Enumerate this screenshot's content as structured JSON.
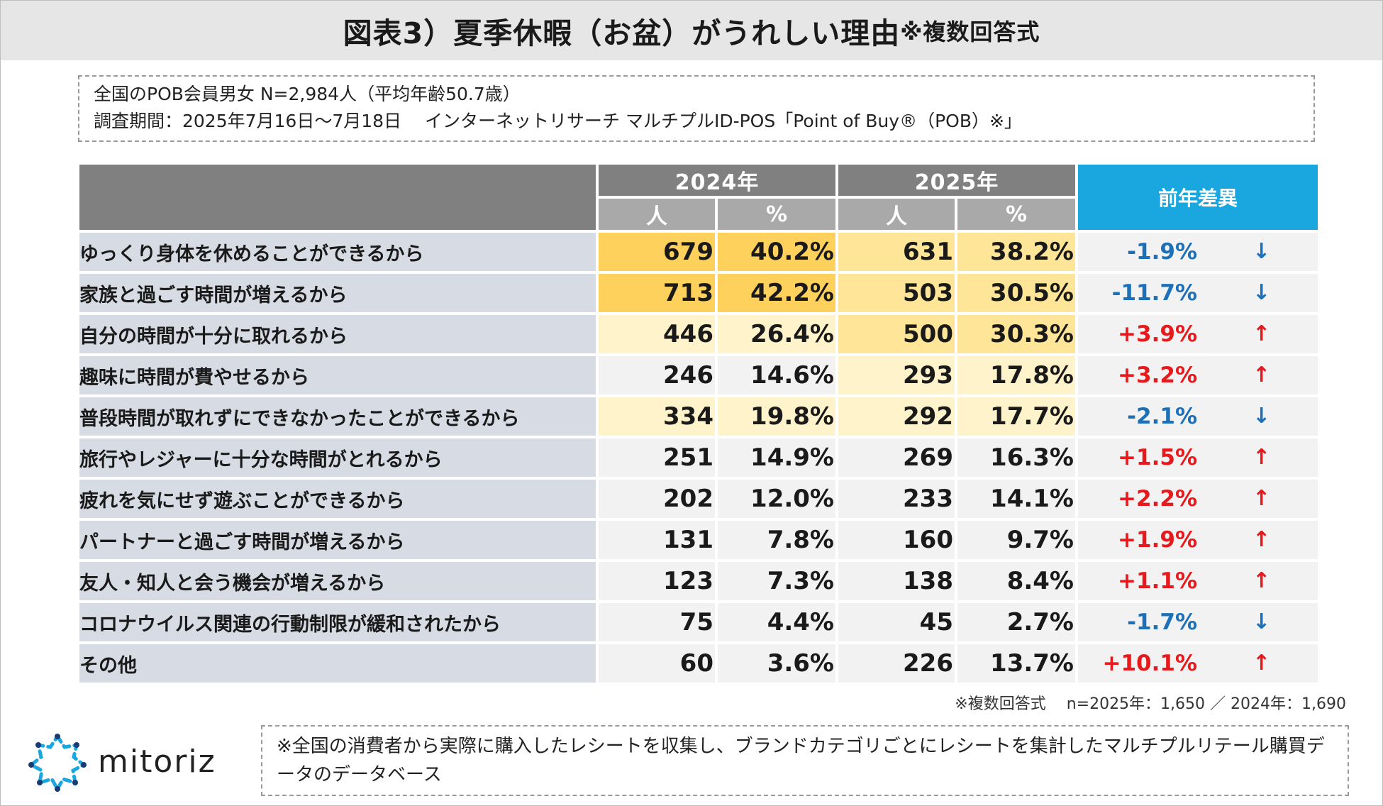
{
  "title": {
    "main": "図表3）夏季休暇（お盆）がうれしい理由",
    "sub": "※複数回答式"
  },
  "info": {
    "line1": "全国のPOB会員男女 N=2,984人（平均年齢50.7歳）",
    "line2": "調査期間：2025年7月16日～7月18日　 インターネットリサーチ マルチプルID-POS「Point of Buy®（POB）※」"
  },
  "table": {
    "year1": "2024年",
    "year2": "2025年",
    "unit_person": "人",
    "unit_pct": "%",
    "diff_header": "前年差異"
  },
  "chart_data": {
    "type": "table",
    "title": "図表3）夏季休暇（お盆）がうれしい理由",
    "columns": [
      "2024年 人",
      "2024年 %",
      "2025年 人",
      "2025年 %",
      "前年差異"
    ],
    "rows": [
      {
        "label": "ゆっくり身体を休めることができるから",
        "n2024": "679",
        "p2024": "40.2%",
        "n2025": "631",
        "p2025": "38.2%",
        "diff": "-1.9%",
        "dir": "down"
      },
      {
        "label": "家族と過ごす時間が増えるから",
        "n2024": "713",
        "p2024": "42.2%",
        "n2025": "503",
        "p2025": "30.5%",
        "diff": "-11.7%",
        "dir": "down"
      },
      {
        "label": "自分の時間が十分に取れるから",
        "n2024": "446",
        "p2024": "26.4%",
        "n2025": "500",
        "p2025": "30.3%",
        "diff": "+3.9%",
        "dir": "up"
      },
      {
        "label": "趣味に時間が費やせるから",
        "n2024": "246",
        "p2024": "14.6%",
        "n2025": "293",
        "p2025": "17.8%",
        "diff": "+3.2%",
        "dir": "up"
      },
      {
        "label": "普段時間が取れずにできなかったことができるから",
        "n2024": "334",
        "p2024": "19.8%",
        "n2025": "292",
        "p2025": "17.7%",
        "diff": "-2.1%",
        "dir": "down"
      },
      {
        "label": "旅行やレジャーに十分な時間がとれるから",
        "n2024": "251",
        "p2024": "14.9%",
        "n2025": "269",
        "p2025": "16.3%",
        "diff": "+1.5%",
        "dir": "up"
      },
      {
        "label": "疲れを気にせず遊ぶことができるから",
        "n2024": "202",
        "p2024": "12.0%",
        "n2025": "233",
        "p2025": "14.1%",
        "diff": "+2.2%",
        "dir": "up"
      },
      {
        "label": "パートナーと過ごす時間が増えるから",
        "n2024": "131",
        "p2024": "7.8%",
        "n2025": "160",
        "p2025": "9.7%",
        "diff": "+1.9%",
        "dir": "up"
      },
      {
        "label": "友人・知人と会う機会が増えるから",
        "n2024": "123",
        "p2024": "7.3%",
        "n2025": "138",
        "p2025": "8.4%",
        "diff": "+1.1%",
        "dir": "up"
      },
      {
        "label": "コロナウイルス関連の行動制限が緩和されたから",
        "n2024": "75",
        "p2024": "4.4%",
        "n2025": "45",
        "p2025": "2.7%",
        "diff": "-1.7%",
        "dir": "down"
      },
      {
        "label": "その他",
        "n2024": "60",
        "p2024": "3.6%",
        "n2025": "226",
        "p2025": "13.7%",
        "diff": "+10.1%",
        "dir": "up"
      }
    ],
    "arrows": {
      "up": "↑",
      "down": "↓"
    },
    "colors": {
      "up": "#e8191c",
      "down": "#1c70b8",
      "heat_high": "#fdd15c",
      "heat_mid": "#ffe597",
      "heat_low": "#fff3cc",
      "neutral": "#f2f2f2"
    }
  },
  "note": "※複数回答式　 n=2025年：1,650 ／ 2024年：1,690",
  "logo": {
    "text": "mitoriz"
  },
  "footnote": "※全国の消費者から実際に購入したレシートを収集し、ブランドカテゴリごとにレシートを集計したマルチプルリテール購買データのデータベース"
}
